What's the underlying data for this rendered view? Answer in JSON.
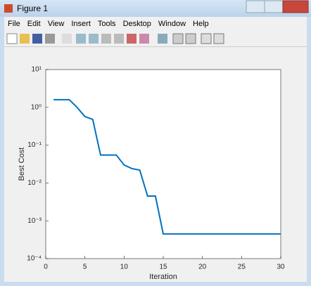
{
  "window": {
    "title": "Figure 1"
  },
  "menu": [
    "File",
    "Edit",
    "View",
    "Insert",
    "Tools",
    "Desktop",
    "Window",
    "Help"
  ],
  "chart_data": {
    "type": "line",
    "xlabel": "Iteration",
    "ylabel": "Best Cost",
    "x": [
      1,
      2,
      3,
      4,
      5,
      6,
      7,
      8,
      9,
      10,
      11,
      12,
      13,
      14,
      15,
      16,
      17,
      18,
      19,
      20,
      21,
      22,
      23,
      24,
      25,
      26,
      27,
      28,
      29,
      30
    ],
    "series": [
      {
        "name": "Best Cost",
        "color": "#0072bd",
        "values": [
          1.6,
          1.6,
          1.6,
          1.0,
          0.57,
          0.48,
          0.055,
          0.055,
          0.055,
          0.03,
          0.024,
          0.022,
          0.0045,
          0.0045,
          0.00045,
          0.00045,
          0.00045,
          0.00045,
          0.00045,
          0.00045,
          0.00045,
          0.00045,
          0.00045,
          0.00045,
          0.00045,
          0.00045,
          0.00045,
          0.00045,
          0.00045,
          0.00045
        ]
      }
    ],
    "xlim": [
      0,
      30
    ],
    "xticks": [
      0,
      5,
      10,
      15,
      20,
      25,
      30
    ],
    "ylim": [
      0.0001,
      10
    ],
    "yscale": "log",
    "yticks": [
      {
        "value": 0.0001,
        "label": "10⁻⁴"
      },
      {
        "value": 0.001,
        "label": "10⁻³"
      },
      {
        "value": 0.01,
        "label": "10⁻²"
      },
      {
        "value": 0.1,
        "label": "10⁻¹"
      },
      {
        "value": 1,
        "label": "10⁰"
      },
      {
        "value": 10,
        "label": "10¹"
      }
    ],
    "grid": false
  }
}
